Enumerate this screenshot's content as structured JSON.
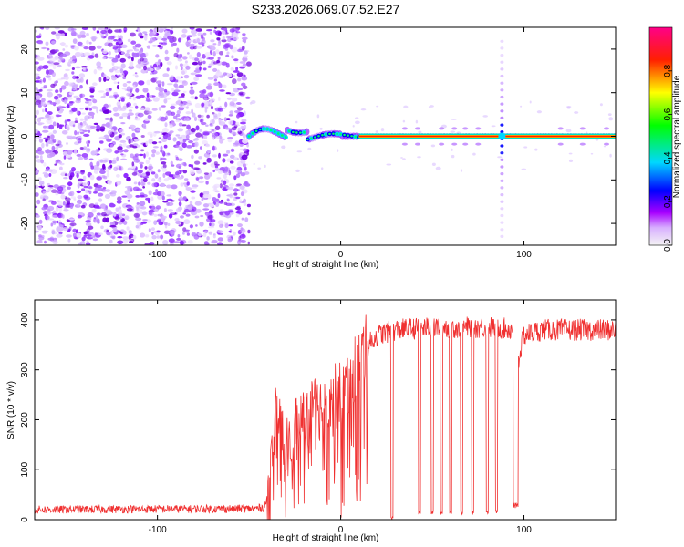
{
  "title": "S233.2026.069.07.52.E27",
  "chart_data": [
    {
      "type": "heatmap",
      "name": "spectrogram",
      "xlabel": "Height of straight line (km)",
      "ylabel": "Frequency (Hz)",
      "xlim": [
        -167,
        150
      ],
      "ylim": [
        -25,
        25
      ],
      "xticks": [
        -100,
        0,
        100
      ],
      "yticks": [
        -20,
        -10,
        0,
        10,
        20
      ],
      "xtick_labels": [
        "-100",
        "0",
        "100"
      ],
      "ytick_labels": [
        "-20",
        "-10",
        "0",
        "10",
        "20"
      ],
      "noise_region_x": [
        -167,
        -50
      ],
      "signal_line_frequency_hz": 0,
      "spike_x_km": 88,
      "colorbar": {
        "label": "Normalized spectral amplitude",
        "range": [
          0,
          1
        ],
        "ticks": [
          0.0,
          0.2,
          0.4,
          0.6,
          0.8
        ],
        "tick_labels": [
          "0.0",
          "0.2",
          "0.4",
          "0.6",
          "0.8"
        ],
        "colors": [
          "#f4f4f4",
          "#a800ff",
          "#0000ff",
          "#00d8ff",
          "#00ff00",
          "#ffff00",
          "#ff0000",
          "#ff0088"
        ]
      }
    },
    {
      "type": "line",
      "name": "snr",
      "xlabel": "Height of straight line (km)",
      "ylabel": "SNR (10 * v/v)",
      "xlim": [
        -167,
        150
      ],
      "ylim": [
        0,
        440
      ],
      "xticks": [
        -100,
        0,
        100
      ],
      "yticks": [
        0,
        100,
        200,
        300,
        400
      ],
      "xtick_labels": [
        "-100",
        "0",
        "100"
      ],
      "ytick_labels": [
        "0",
        "100",
        "200",
        "300",
        "400"
      ],
      "line_color": "#f03030",
      "envelope_x": [
        -167,
        -50,
        -42,
        -39,
        -36,
        -30,
        -20,
        -10,
        0,
        10,
        15,
        20,
        30,
        50,
        70,
        85,
        94,
        97,
        100,
        110,
        150
      ],
      "envelope_y": [
        20,
        22,
        24,
        50,
        200,
        140,
        200,
        230,
        250,
        320,
        350,
        370,
        380,
        385,
        385,
        385,
        380,
        320,
        370,
        380,
        380
      ],
      "dropouts": [
        {
          "x": 28,
          "y": 0
        },
        {
          "x": 43,
          "y": 10
        },
        {
          "x": 50,
          "y": 10
        },
        {
          "x": 55,
          "y": 10
        },
        {
          "x": 60,
          "y": 10
        },
        {
          "x": 66,
          "y": 10
        },
        {
          "x": 72,
          "y": 10
        },
        {
          "x": 80,
          "y": 10
        },
        {
          "x": 85,
          "y": 10
        },
        {
          "x": 95,
          "y": 10
        },
        {
          "x": 96,
          "y": 20
        }
      ]
    }
  ]
}
